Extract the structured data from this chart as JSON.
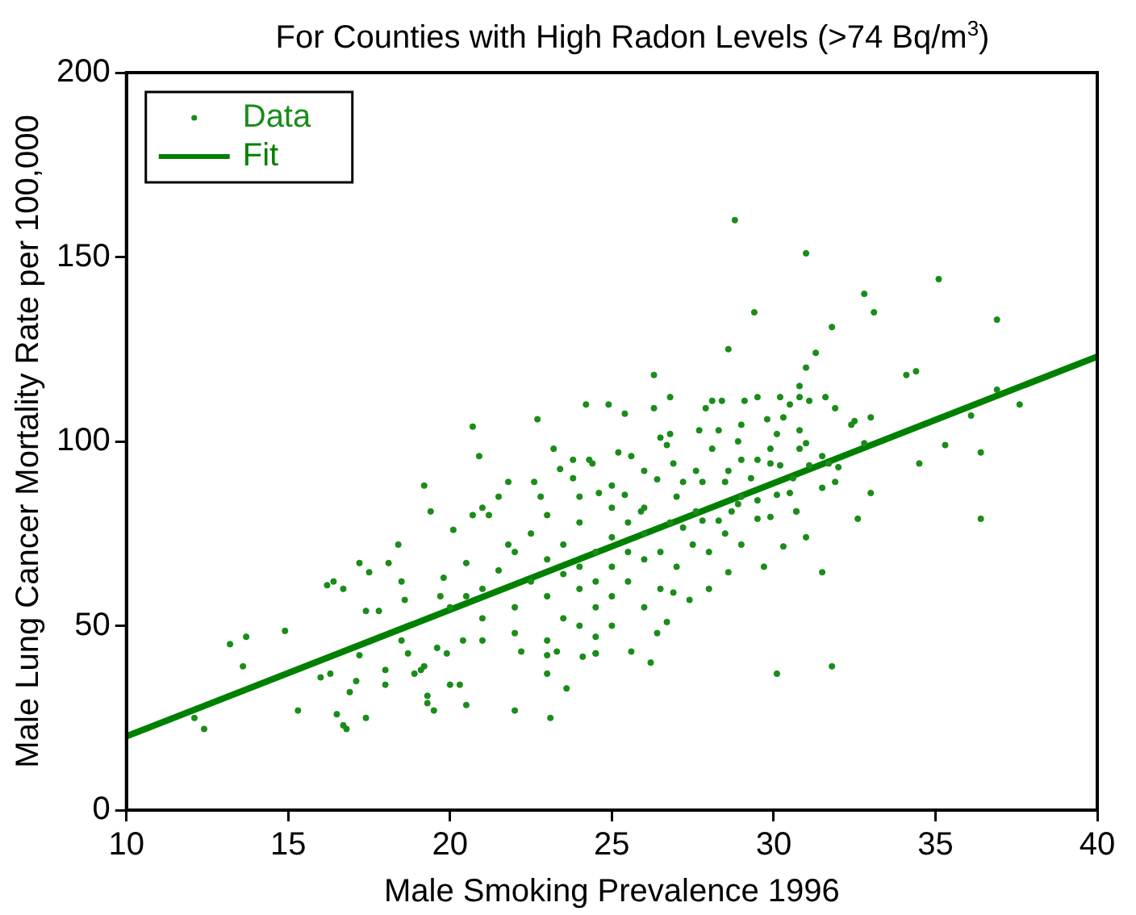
{
  "chart_data": {
    "type": "scatter",
    "title": "For Counties with High Radon Levels (>74 Bq/m$^{3}$)",
    "xlabel": "Male Smoking Prevalence 1996",
    "ylabel": "Male Lung Cancer Mortality Rate per 100,000",
    "xlim": [
      10,
      40
    ],
    "xticks": [
      10,
      15,
      20,
      25,
      30,
      35,
      40
    ],
    "ylim": [
      0,
      200
    ],
    "yticks": [
      0,
      50,
      100,
      150,
      200
    ],
    "grid": false,
    "legend": "top left",
    "marker": "circle",
    "series": [
      {
        "name": "Data",
        "color": "#1a8c1a",
        "x": [
          28.8,
          31.0,
          35.1,
          32.8,
          33.1,
          29.4,
          36.9,
          31.8,
          28.6,
          31.3,
          31.0,
          34.1,
          34.4,
          26.3,
          36.9,
          37.6,
          36.1,
          35.3,
          36.4,
          34.5,
          33.0,
          36.4,
          32.6,
          31.5,
          31.8,
          30.1,
          26.2,
          25.6,
          24.5,
          26.4,
          26.7,
          27.4,
          26.9,
          30.3,
          29.7,
          28.6,
          30.7,
          31.0,
          12.1,
          12.4,
          13.2,
          13.7,
          13.6,
          14.9,
          15.3,
          16.2,
          16.4,
          16.0,
          16.3,
          16.5,
          16.7,
          16.8,
          17.4,
          16.7,
          16.9,
          17.1,
          17.2,
          17.2,
          17.4,
          17.8,
          17.5,
          18.0,
          18.0,
          18.4,
          18.1,
          18.5,
          18.6,
          18.5,
          18.7,
          19.1,
          19.2,
          18.9,
          19.3,
          19.3,
          19.5,
          19.4,
          19.6,
          19.7,
          20.1,
          19.9,
          20.0,
          20.5,
          20.3,
          20.4,
          20.7,
          22.0,
          23.1,
          23.0,
          23.6,
          23.3,
          24.1,
          24.5,
          19.2,
          20.7,
          20.9,
          22.7,
          24.2,
          24.9,
          22.6,
          21.8,
          21.0,
          21.2,
          23.8,
          23.4,
          24.4,
          25.2,
          26.8,
          26.3,
          25.4,
          28.1,
          28.4,
          29.1,
          29.5,
          30.2,
          30.8,
          30.8,
          31.6,
          31.9,
          30.5,
          31.1,
          30.3,
          29.8,
          29.0,
          32.4,
          32.5,
          33.0,
          27.9,
          27.7,
          28.3,
          30.1,
          30.8,
          26.8,
          26.5,
          26.7,
          28.1,
          28.9,
          29.9,
          30.8,
          31.0,
          32.8,
          31.5,
          32.0,
          31.7,
          31.1,
          30.2,
          29.0,
          29.5,
          29.9,
          28.6,
          27.6,
          26.9,
          25.6,
          26.0,
          26.4,
          27.2,
          27.8,
          28.5,
          29.3,
          30.6,
          31.5,
          31.9,
          30.1,
          30.5,
          29.5,
          28.9,
          30.7,
          29.9,
          29.5,
          28.7,
          28.3,
          27.8,
          27.6,
          27.2,
          26.8,
          25.9,
          25.0,
          24.6,
          25.4,
          21.0,
          21.5,
          22.0,
          22.0,
          22.5,
          22.5,
          23.0,
          23.0,
          23.0,
          23.5,
          23.5,
          23.5,
          24.0,
          24.0,
          24.0,
          24.0,
          24.5,
          24.5,
          24.5,
          25.0,
          25.0,
          25.0,
          25.0,
          25.5,
          25.5,
          25.5,
          26.0,
          26.0,
          26.0,
          26.0,
          22.0,
          23.0,
          24.0,
          25.0,
          21.0,
          20.5,
          21.8,
          22.8,
          23.8,
          26.5,
          27.0,
          27.5,
          28.0,
          28.5,
          29.0,
          27.0,
          28.0,
          29.0,
          26.5,
          24.3,
          23.2,
          21.5,
          20.5,
          19.8,
          20.0,
          21.0,
          22.2,
          23.0,
          24.5
        ],
        "values": [
          160,
          151,
          144,
          140,
          135,
          135,
          133,
          131,
          125,
          124,
          120,
          118,
          119,
          118,
          114,
          110,
          107,
          99,
          97,
          94,
          86,
          79,
          79,
          64.5,
          39,
          37,
          40,
          43,
          42.5,
          48,
          51,
          57,
          59,
          71.5,
          66,
          64.5,
          81,
          74,
          25,
          22,
          45,
          47,
          39,
          48.6,
          27,
          61,
          62,
          36,
          37,
          26,
          23,
          22,
          25,
          60,
          32,
          35,
          42,
          67,
          54,
          54,
          64.5,
          38,
          34,
          72,
          67,
          62,
          57,
          46,
          42.5,
          38,
          39,
          37,
          31,
          29,
          27,
          81,
          44,
          58,
          76,
          42.5,
          34,
          28.5,
          34,
          46,
          80,
          27,
          25,
          37,
          33,
          43,
          41.6,
          42.5,
          88,
          104,
          96,
          106,
          110,
          110,
          89,
          89,
          82,
          80,
          95,
          92.5,
          94,
          97,
          112,
          109,
          107.5,
          111,
          111,
          111,
          112,
          112,
          115,
          112,
          112,
          109,
          110,
          111,
          106.5,
          106,
          104.5,
          104.5,
          105.5,
          106.5,
          109,
          103,
          103,
          102,
          103,
          102,
          101,
          99,
          98,
          100,
          98,
          98,
          99.5,
          99.5,
          96,
          93,
          94,
          93.5,
          93.5,
          95,
          95,
          94,
          92,
          92,
          94,
          96,
          92,
          89.7,
          89,
          89,
          89,
          90,
          90,
          87.4,
          89,
          85.5,
          86,
          84,
          83,
          81,
          79.5,
          79,
          81,
          78.5,
          78.5,
          81,
          76.6,
          78,
          81,
          82,
          86,
          85.5,
          60,
          65,
          70,
          55,
          62,
          75,
          58,
          68,
          80,
          52,
          64,
          72,
          60,
          66,
          78,
          85,
          55,
          70,
          62,
          58,
          74,
          66,
          88,
          62,
          70,
          78,
          55,
          68,
          75,
          82,
          48,
          46,
          50,
          50,
          52,
          58,
          72,
          85,
          90,
          70,
          66,
          72,
          70,
          75,
          72,
          85,
          60,
          85,
          60,
          95,
          98,
          85,
          67,
          63,
          55,
          46,
          43,
          42,
          47
        ]
      },
      {
        "name": "Fit",
        "type": "line",
        "color": "#008000",
        "x": [
          10,
          40
        ],
        "values": [
          20,
          123
        ],
        "marker": "none"
      }
    ]
  }
}
